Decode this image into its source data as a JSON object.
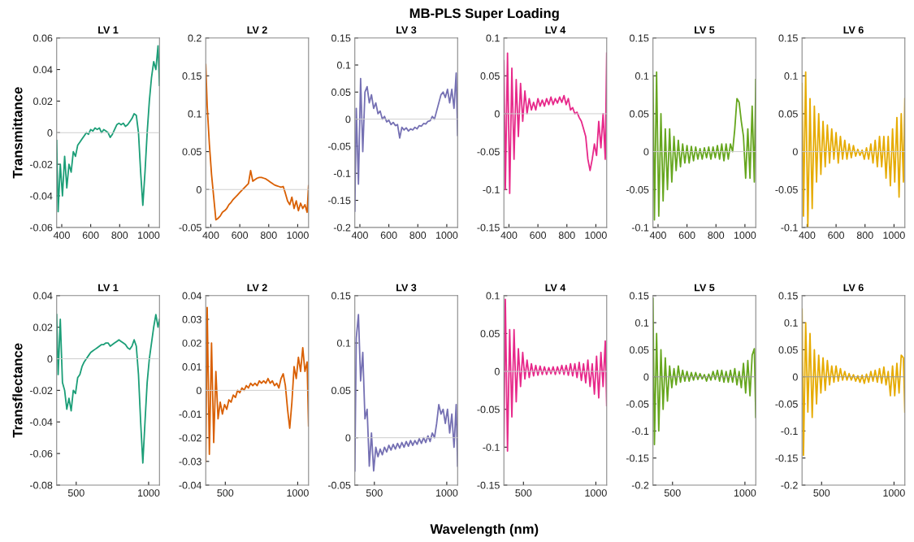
{
  "chart_data": [
    {
      "type": "line",
      "title": "LV 1",
      "ylabel": "Transmittance",
      "annotations": [
        "MB-PLS Super Loading",
        "Wavelength (nm)"
      ],
      "x": [
        365,
        375,
        390,
        405,
        420,
        435,
        450,
        465,
        480,
        495,
        510,
        525,
        540,
        555,
        570,
        585,
        600,
        615,
        630,
        645,
        660,
        675,
        690,
        705,
        720,
        735,
        750,
        765,
        780,
        795,
        810,
        825,
        840,
        855,
        870,
        885,
        900,
        915,
        930,
        945,
        960,
        975,
        990,
        1005,
        1020,
        1035,
        1050,
        1065,
        1075
      ],
      "xlim": [
        365,
        1075
      ],
      "xticks": [
        400,
        600,
        800,
        1000
      ],
      "ylim": [
        -0.06,
        0.06
      ],
      "yticks": [
        -0.06,
        -0.04,
        -0.02,
        0,
        0.02,
        0.04,
        0.06
      ],
      "ref_lines": [
        {
          "axis": "y",
          "value": 0,
          "color": "#cccccc"
        }
      ],
      "series": [
        {
          "color": "#1b9e77",
          "values": [
            -0.005,
            -0.05,
            -0.02,
            -0.04,
            -0.015,
            -0.035,
            -0.02,
            -0.025,
            -0.012,
            -0.015,
            -0.008,
            -0.006,
            -0.004,
            -0.002,
            0.0,
            -0.001,
            0.002,
            0.001,
            0.003,
            0.002,
            0.003,
            0.0,
            0.002,
            0.001,
            0.0,
            -0.003,
            -0.001,
            0.002,
            0.005,
            0.006,
            0.005,
            0.006,
            0.004,
            0.005,
            0.007,
            0.009,
            0.012,
            0.011,
            0.0,
            -0.025,
            -0.046,
            -0.025,
            0.0,
            0.02,
            0.035,
            0.045,
            0.04,
            0.055,
            0.03
          ]
        }
      ]
    },
    {
      "type": "line",
      "title": "LV 2",
      "x": [
        365,
        375,
        390,
        405,
        420,
        435,
        450,
        465,
        480,
        495,
        510,
        525,
        540,
        555,
        570,
        585,
        600,
        615,
        630,
        645,
        660,
        675,
        690,
        705,
        720,
        735,
        750,
        765,
        780,
        795,
        810,
        825,
        840,
        855,
        870,
        885,
        900,
        915,
        930,
        945,
        960,
        975,
        990,
        1005,
        1020,
        1035,
        1050,
        1065,
        1075
      ],
      "xlim": [
        365,
        1075
      ],
      "xticks": [
        400,
        600,
        800,
        1000
      ],
      "ylim": [
        -0.05,
        0.2
      ],
      "yticks": [
        -0.05,
        0,
        0.05,
        0.1,
        0.15,
        0.2
      ],
      "ref_lines": [
        {
          "axis": "y",
          "value": 0,
          "color": "#cccccc"
        }
      ],
      "series": [
        {
          "color": "#d95f02",
          "values": [
            0.165,
            0.11,
            0.06,
            0.02,
            -0.01,
            -0.04,
            -0.038,
            -0.035,
            -0.03,
            -0.028,
            -0.025,
            -0.02,
            -0.017,
            -0.013,
            -0.01,
            -0.007,
            -0.004,
            -0.001,
            0.002,
            0.005,
            0.008,
            0.025,
            0.011,
            0.013,
            0.015,
            0.016,
            0.016,
            0.015,
            0.014,
            0.012,
            0.01,
            0.008,
            0.006,
            0.005,
            0.004,
            0.003,
            0.004,
            -0.005,
            -0.015,
            -0.02,
            -0.01,
            -0.025,
            -0.015,
            -0.028,
            -0.018,
            -0.025,
            -0.02,
            -0.03,
            0.005
          ]
        }
      ]
    },
    {
      "type": "line",
      "title": "LV 3",
      "x": [
        365,
        375,
        390,
        405,
        420,
        435,
        450,
        465,
        480,
        495,
        510,
        525,
        540,
        555,
        570,
        585,
        600,
        615,
        630,
        645,
        660,
        675,
        690,
        705,
        720,
        735,
        750,
        765,
        780,
        795,
        810,
        825,
        840,
        855,
        870,
        885,
        900,
        915,
        930,
        945,
        960,
        975,
        990,
        1005,
        1020,
        1035,
        1050,
        1065,
        1075
      ],
      "xlim": [
        365,
        1075
      ],
      "xticks": [
        400,
        600,
        800,
        1000
      ],
      "ylim": [
        -0.2,
        0.15
      ],
      "yticks": [
        -0.2,
        -0.15,
        -0.1,
        -0.05,
        0,
        0.05,
        0.1,
        0.15
      ],
      "ref_lines": [
        {
          "axis": "y",
          "value": 0,
          "color": "#cccccc"
        }
      ],
      "series": [
        {
          "color": "#7570b3",
          "values": [
            -0.17,
            0.02,
            -0.12,
            0.075,
            -0.06,
            0.05,
            0.06,
            0.03,
            0.045,
            0.02,
            0.03,
            0.01,
            0.015,
            0.0,
            0.005,
            -0.005,
            -0.002,
            -0.01,
            -0.006,
            -0.012,
            -0.01,
            -0.035,
            -0.015,
            -0.02,
            -0.016,
            -0.022,
            -0.018,
            -0.02,
            -0.015,
            -0.018,
            -0.012,
            -0.013,
            -0.008,
            -0.009,
            -0.004,
            -0.003,
            0.005,
            0.0,
            0.015,
            0.03,
            0.045,
            0.05,
            0.04,
            0.055,
            0.03,
            0.055,
            0.02,
            0.085,
            -0.03
          ]
        }
      ]
    },
    {
      "type": "line",
      "title": "LV 4",
      "x": [
        365,
        375,
        390,
        405,
        420,
        435,
        450,
        465,
        480,
        495,
        510,
        525,
        540,
        555,
        570,
        585,
        600,
        615,
        630,
        645,
        660,
        675,
        690,
        705,
        720,
        735,
        750,
        765,
        780,
        795,
        810,
        825,
        840,
        855,
        870,
        885,
        900,
        915,
        930,
        945,
        960,
        975,
        990,
        1005,
        1020,
        1035,
        1050,
        1065,
        1075
      ],
      "xlim": [
        365,
        1075
      ],
      "xticks": [
        400,
        600,
        800,
        1000
      ],
      "ylim": [
        -0.15,
        0.1
      ],
      "yticks": [
        -0.15,
        -0.1,
        -0.05,
        0,
        0.05,
        0.1
      ],
      "ref_lines": [
        {
          "axis": "y",
          "value": 0,
          "color": "#cccccc"
        }
      ],
      "series": [
        {
          "color": "#e7298a",
          "values": [
            0.07,
            -0.1,
            0.08,
            -0.105,
            0.06,
            -0.06,
            0.045,
            -0.03,
            0.04,
            -0.01,
            0.03,
            0.0,
            0.02,
            0.005,
            0.015,
            0.005,
            0.02,
            0.01,
            0.018,
            0.01,
            0.02,
            0.012,
            0.022,
            0.012,
            0.02,
            0.014,
            0.022,
            0.015,
            0.024,
            0.012,
            0.02,
            0.005,
            0.008,
            0.0,
            0.002,
            -0.005,
            -0.01,
            -0.02,
            -0.03,
            -0.06,
            -0.075,
            -0.06,
            -0.04,
            -0.055,
            -0.01,
            -0.045,
            0.0,
            -0.06,
            0.08
          ]
        }
      ]
    },
    {
      "type": "line",
      "title": "LV 5",
      "x": [
        365,
        375,
        390,
        405,
        420,
        435,
        450,
        465,
        480,
        495,
        510,
        525,
        540,
        555,
        570,
        585,
        600,
        615,
        630,
        645,
        660,
        675,
        690,
        705,
        720,
        735,
        750,
        765,
        780,
        795,
        810,
        825,
        840,
        855,
        870,
        885,
        900,
        915,
        930,
        945,
        960,
        975,
        990,
        1005,
        1020,
        1035,
        1050,
        1065,
        1075
      ],
      "xlim": [
        365,
        1075
      ],
      "xticks": [
        400,
        600,
        800,
        1000
      ],
      "ylim": [
        -0.1,
        0.15
      ],
      "yticks": [
        -0.1,
        -0.05,
        0,
        0.05,
        0.1,
        0.15
      ],
      "ref_lines": [
        {
          "axis": "y",
          "value": 0,
          "color": "#cccccc"
        }
      ],
      "series": [
        {
          "color": "#66a61e",
          "values": [
            0.1,
            -0.09,
            0.105,
            -0.085,
            0.05,
            -0.065,
            0.03,
            -0.05,
            0.03,
            -0.04,
            0.02,
            -0.025,
            0.015,
            -0.02,
            0.01,
            -0.015,
            0.008,
            -0.015,
            0.007,
            -0.012,
            0.006,
            -0.01,
            0.004,
            -0.01,
            0.005,
            -0.008,
            0.006,
            -0.01,
            0.006,
            -0.008,
            0.008,
            -0.01,
            0.01,
            -0.012,
            0.01,
            -0.01,
            0.01,
            0.0,
            0.03,
            0.07,
            0.065,
            0.04,
            0.02,
            -0.035,
            0.03,
            -0.035,
            0.06,
            -0.04,
            0.095
          ]
        }
      ]
    },
    {
      "type": "line",
      "title": "LV 6",
      "x": [
        365,
        375,
        390,
        405,
        420,
        435,
        450,
        465,
        480,
        495,
        510,
        525,
        540,
        555,
        570,
        585,
        600,
        615,
        630,
        645,
        660,
        675,
        690,
        705,
        720,
        735,
        750,
        765,
        780,
        795,
        810,
        825,
        840,
        855,
        870,
        885,
        900,
        915,
        930,
        945,
        960,
        975,
        990,
        1005,
        1020,
        1035,
        1050,
        1065,
        1075
      ],
      "xlim": [
        365,
        1075
      ],
      "xticks": [
        400,
        600,
        800,
        1000
      ],
      "ylim": [
        -0.1,
        0.15
      ],
      "yticks": [
        -0.1,
        -0.05,
        0,
        0.05,
        0.1,
        0.15
      ],
      "ref_lines": [
        {
          "axis": "y",
          "value": 0,
          "color": "#cccccc"
        }
      ],
      "series": [
        {
          "color": "#e6ab02",
          "values": [
            0.09,
            -0.085,
            0.105,
            -0.1,
            0.07,
            -0.075,
            0.06,
            -0.04,
            0.05,
            -0.03,
            0.04,
            -0.02,
            0.035,
            -0.015,
            0.03,
            -0.01,
            0.025,
            -0.015,
            0.02,
            -0.01,
            0.015,
            -0.01,
            0.01,
            -0.008,
            0.008,
            -0.006,
            0.003,
            -0.005,
            0.002,
            -0.01,
            0.005,
            -0.01,
            0.01,
            -0.015,
            0.015,
            -0.02,
            0.02,
            -0.02,
            0.02,
            -0.035,
            0.02,
            -0.045,
            0.03,
            -0.04,
            0.045,
            -0.06,
            0.05,
            -0.04,
            0.07
          ]
        }
      ]
    },
    {
      "type": "line",
      "title": "LV 1",
      "ylabel": "Transflectance",
      "x": [
        365,
        375,
        390,
        405,
        420,
        435,
        450,
        465,
        480,
        495,
        510,
        525,
        540,
        555,
        570,
        585,
        600,
        615,
        630,
        645,
        660,
        675,
        690,
        705,
        720,
        735,
        750,
        765,
        780,
        795,
        810,
        825,
        840,
        855,
        870,
        885,
        900,
        915,
        930,
        945,
        960,
        975,
        990,
        1005,
        1020,
        1035,
        1050,
        1065,
        1075
      ],
      "xlim": [
        365,
        1075
      ],
      "xticks": [
        500,
        1000
      ],
      "ylim": [
        -0.08,
        0.04
      ],
      "yticks": [
        -0.08,
        -0.06,
        -0.04,
        -0.02,
        0,
        0.02,
        0.04
      ],
      "ref_lines": [
        {
          "axis": "y",
          "value": 0,
          "color": "#cccccc"
        }
      ],
      "series": [
        {
          "color": "#1b9e77",
          "values": [
            0.028,
            -0.01,
            0.025,
            -0.015,
            -0.02,
            -0.032,
            -0.025,
            -0.033,
            -0.02,
            -0.022,
            -0.012,
            -0.01,
            -0.005,
            -0.002,
            0.0,
            0.002,
            0.004,
            0.005,
            0.006,
            0.007,
            0.008,
            0.009,
            0.009,
            0.01,
            0.01,
            0.008,
            0.009,
            0.01,
            0.011,
            0.012,
            0.011,
            0.01,
            0.009,
            0.007,
            0.006,
            0.008,
            0.012,
            0.008,
            -0.01,
            -0.04,
            -0.066,
            -0.04,
            -0.015,
            0.0,
            0.01,
            0.02,
            0.028,
            0.02,
            0.025
          ]
        }
      ]
    },
    {
      "type": "line",
      "title": "LV 2",
      "x": [
        365,
        375,
        390,
        405,
        420,
        435,
        450,
        465,
        480,
        495,
        510,
        525,
        540,
        555,
        570,
        585,
        600,
        615,
        630,
        645,
        660,
        675,
        690,
        705,
        720,
        735,
        750,
        765,
        780,
        795,
        810,
        825,
        840,
        855,
        870,
        885,
        900,
        915,
        930,
        945,
        960,
        975,
        990,
        1005,
        1020,
        1035,
        1050,
        1065,
        1075
      ],
      "xlim": [
        365,
        1075
      ],
      "xticks": [
        500,
        1000
      ],
      "ylim": [
        -0.04,
        0.04
      ],
      "yticks": [
        -0.04,
        -0.03,
        -0.02,
        -0.01,
        0,
        0.01,
        0.02,
        0.03,
        0.04
      ],
      "ref_lines": [
        {
          "axis": "y",
          "value": 0,
          "color": "#cccccc"
        }
      ],
      "series": [
        {
          "color": "#d95f02",
          "values": [
            -0.03,
            0.035,
            -0.027,
            0.02,
            -0.022,
            0.008,
            -0.012,
            -0.005,
            -0.01,
            -0.006,
            -0.008,
            -0.004,
            -0.005,
            -0.002,
            -0.003,
            0.0,
            -0.001,
            0.001,
            0.0,
            0.002,
            0.001,
            0.003,
            0.002,
            0.003,
            0.002,
            0.004,
            0.003,
            0.004,
            0.003,
            0.005,
            0.003,
            0.004,
            0.002,
            0.003,
            0.001,
            0.005,
            0.007,
            0.002,
            -0.008,
            -0.016,
            -0.005,
            0.01,
            0.005,
            0.014,
            0.008,
            0.018,
            0.008,
            0.012,
            -0.015
          ]
        }
      ]
    },
    {
      "type": "line",
      "title": "LV 3",
      "x": [
        365,
        375,
        390,
        405,
        420,
        435,
        450,
        465,
        480,
        495,
        510,
        525,
        540,
        555,
        570,
        585,
        600,
        615,
        630,
        645,
        660,
        675,
        690,
        705,
        720,
        735,
        750,
        765,
        780,
        795,
        810,
        825,
        840,
        855,
        870,
        885,
        900,
        915,
        930,
        945,
        960,
        975,
        990,
        1005,
        1020,
        1035,
        1050,
        1065,
        1075
      ],
      "xlim": [
        365,
        1075
      ],
      "xticks": [
        500,
        1000
      ],
      "ylim": [
        -0.05,
        0.15
      ],
      "yticks": [
        -0.05,
        0,
        0.05,
        0.1,
        0.15
      ],
      "ref_lines": [
        {
          "axis": "y",
          "value": 0,
          "color": "#cccccc"
        }
      ],
      "series": [
        {
          "color": "#7570b3",
          "values": [
            -0.035,
            0.105,
            0.13,
            0.06,
            0.09,
            0.02,
            0.03,
            -0.03,
            0.005,
            -0.035,
            -0.01,
            -0.02,
            -0.012,
            -0.018,
            -0.01,
            -0.015,
            -0.008,
            -0.013,
            -0.007,
            -0.012,
            -0.006,
            -0.011,
            -0.005,
            -0.01,
            -0.004,
            -0.009,
            -0.003,
            -0.008,
            -0.003,
            -0.007,
            -0.001,
            -0.006,
            0.0,
            -0.005,
            0.002,
            -0.004,
            0.005,
            0.0,
            0.015,
            0.035,
            0.025,
            0.03,
            0.015,
            0.03,
            0.005,
            0.025,
            -0.01,
            0.035,
            -0.03
          ]
        }
      ]
    },
    {
      "type": "line",
      "title": "LV 4",
      "x": [
        365,
        375,
        390,
        405,
        420,
        435,
        450,
        465,
        480,
        495,
        510,
        525,
        540,
        555,
        570,
        585,
        600,
        615,
        630,
        645,
        660,
        675,
        690,
        705,
        720,
        735,
        750,
        765,
        780,
        795,
        810,
        825,
        840,
        855,
        870,
        885,
        900,
        915,
        930,
        945,
        960,
        975,
        990,
        1005,
        1020,
        1035,
        1050,
        1065,
        1075
      ],
      "xlim": [
        365,
        1075
      ],
      "xticks": [
        500,
        1000
      ],
      "ylim": [
        -0.15,
        0.1
      ],
      "yticks": [
        -0.15,
        -0.1,
        -0.05,
        0,
        0.05,
        0.1
      ],
      "ref_lines": [
        {
          "axis": "y",
          "value": 0,
          "color": "#cccccc"
        }
      ],
      "series": [
        {
          "color": "#e7298a",
          "values": [
            -0.1,
            0.095,
            -0.105,
            0.055,
            -0.06,
            0.055,
            -0.04,
            0.03,
            -0.02,
            0.025,
            -0.01,
            0.015,
            -0.008,
            0.01,
            -0.006,
            0.008,
            -0.005,
            0.007,
            -0.004,
            0.006,
            -0.004,
            0.005,
            -0.003,
            0.006,
            -0.004,
            0.006,
            -0.003,
            0.008,
            -0.004,
            0.008,
            -0.005,
            0.01,
            -0.006,
            0.01,
            -0.008,
            0.012,
            -0.012,
            0.01,
            -0.015,
            0.015,
            -0.02,
            0.01,
            -0.03,
            0.02,
            -0.035,
            0.025,
            -0.02,
            0.04,
            -0.045
          ]
        }
      ]
    },
    {
      "type": "line",
      "title": "LV 5",
      "x": [
        365,
        375,
        390,
        405,
        420,
        435,
        450,
        465,
        480,
        495,
        510,
        525,
        540,
        555,
        570,
        585,
        600,
        615,
        630,
        645,
        660,
        675,
        690,
        705,
        720,
        735,
        750,
        765,
        780,
        795,
        810,
        825,
        840,
        855,
        870,
        885,
        900,
        915,
        930,
        945,
        960,
        975,
        990,
        1005,
        1020,
        1035,
        1050,
        1065,
        1075
      ],
      "xlim": [
        365,
        1075
      ],
      "xticks": [
        500,
        1000
      ],
      "ylim": [
        -0.2,
        0.15
      ],
      "yticks": [
        -0.2,
        -0.15,
        -0.1,
        -0.05,
        0,
        0.05,
        0.1,
        0.15
      ],
      "ref_lines": [
        {
          "axis": "y",
          "value": 0,
          "color": "#999999"
        }
      ],
      "series": [
        {
          "color": "#66a61e",
          "values": [
            0.145,
            -0.125,
            0.08,
            -0.1,
            0.05,
            -0.06,
            0.035,
            -0.045,
            0.02,
            -0.02,
            0.015,
            -0.015,
            0.02,
            -0.01,
            0.012,
            -0.008,
            0.01,
            -0.008,
            0.008,
            -0.006,
            0.008,
            -0.005,
            0.006,
            -0.004,
            0.004,
            -0.008,
            0.005,
            -0.006,
            0.01,
            -0.005,
            0.012,
            -0.008,
            0.012,
            -0.01,
            0.01,
            -0.01,
            0.012,
            -0.01,
            0.015,
            -0.015,
            0.01,
            -0.02,
            0.025,
            -0.03,
            0.03,
            -0.035,
            0.04,
            0.052,
            -0.075
          ]
        }
      ]
    },
    {
      "type": "line",
      "title": "LV 6",
      "x": [
        365,
        375,
        390,
        405,
        420,
        435,
        450,
        465,
        480,
        495,
        510,
        525,
        540,
        555,
        570,
        585,
        600,
        615,
        630,
        645,
        660,
        675,
        690,
        705,
        720,
        735,
        750,
        765,
        780,
        795,
        810,
        825,
        840,
        855,
        870,
        885,
        900,
        915,
        930,
        945,
        960,
        975,
        990,
        1005,
        1020,
        1035,
        1050,
        1065,
        1075
      ],
      "xlim": [
        365,
        1075
      ],
      "xticks": [
        500,
        1000
      ],
      "ylim": [
        -0.2,
        0.15
      ],
      "yticks": [
        -0.2,
        -0.15,
        -0.1,
        -0.05,
        0,
        0.05,
        0.1,
        0.15
      ],
      "ref_lines": [
        {
          "axis": "y",
          "value": 0,
          "color": "#999999"
        }
      ],
      "series": [
        {
          "color": "#e6ab02",
          "values": [
            0.125,
            -0.145,
            0.1,
            -0.065,
            0.08,
            -0.075,
            0.05,
            -0.05,
            0.04,
            -0.03,
            0.035,
            -0.025,
            0.03,
            -0.015,
            0.02,
            -0.01,
            0.02,
            -0.008,
            0.015,
            -0.006,
            0.01,
            -0.006,
            0.006,
            -0.006,
            0.004,
            -0.008,
            0.002,
            -0.01,
            0.003,
            -0.012,
            0.005,
            -0.01,
            0.01,
            -0.008,
            0.012,
            -0.01,
            0.015,
            -0.012,
            0.018,
            -0.015,
            0.01,
            -0.035,
            0.02,
            -0.035,
            0.025,
            -0.03,
            0.04,
            0.035,
            -0.065
          ]
        }
      ]
    }
  ]
}
